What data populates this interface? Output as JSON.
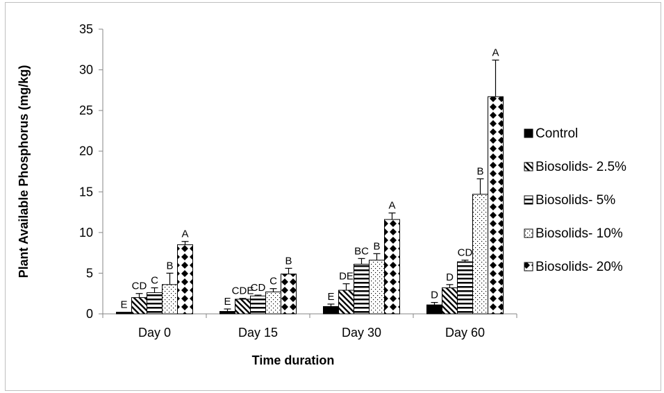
{
  "chart_data": {
    "type": "bar",
    "xlabel": "Time duration",
    "ylabel": "Plant Available Phosphorus (mg/kg)",
    "ylim": [
      0,
      35
    ],
    "yticks": [
      0,
      5,
      10,
      15,
      20,
      25,
      30,
      35
    ],
    "categories": [
      "Day 0",
      "Day 15",
      "Day 30",
      "Day 60"
    ],
    "legend_position": "right",
    "series": [
      {
        "name": "Control",
        "pattern": "solid-black",
        "values": [
          0.2,
          0.3,
          0.9,
          1.1
        ],
        "errors": [
          0.0,
          0.3,
          0.3,
          0.3
        ],
        "letters": [
          "E",
          "E",
          "E",
          "D"
        ]
      },
      {
        "name": "Biosolids- 2.5%",
        "pattern": "diagonal-stripes",
        "values": [
          2.0,
          1.8,
          2.9,
          3.2
        ],
        "errors": [
          0.5,
          0.1,
          0.8,
          0.4
        ],
        "letters": [
          "CD",
          "CDE",
          "DE",
          "D"
        ]
      },
      {
        "name": "Biosolids- 5%",
        "pattern": "horizontal-stripes",
        "values": [
          2.6,
          2.2,
          6.1,
          6.4
        ],
        "errors": [
          0.6,
          0.1,
          0.7,
          0.2
        ],
        "letters": [
          "C",
          "CD",
          "BC",
          "CD"
        ]
      },
      {
        "name": "Biosolids- 10%",
        "pattern": "dots",
        "values": [
          3.6,
          2.7,
          6.6,
          14.7
        ],
        "errors": [
          1.4,
          0.4,
          0.8,
          1.9
        ],
        "letters": [
          "B",
          "C",
          "B",
          "B"
        ]
      },
      {
        "name": "Biosolids- 20%",
        "pattern": "diamond-checker",
        "values": [
          8.5,
          4.9,
          11.6,
          26.7
        ],
        "errors": [
          0.4,
          0.7,
          0.8,
          4.5
        ],
        "letters": [
          "A",
          "B",
          "A",
          "A"
        ]
      }
    ]
  }
}
